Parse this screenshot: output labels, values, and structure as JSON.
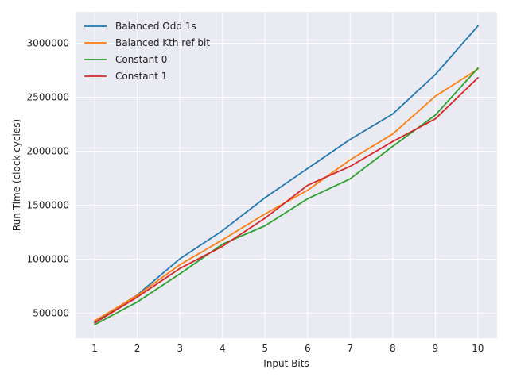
{
  "chart_data": {
    "type": "line",
    "title": "",
    "xlabel": "Input Bits",
    "ylabel": "Run Time (clock cycles)",
    "x": [
      1,
      2,
      3,
      4,
      5,
      6,
      7,
      8,
      9,
      10
    ],
    "xticks": [
      "1",
      "2",
      "3",
      "4",
      "5",
      "6",
      "7",
      "8",
      "9",
      "10"
    ],
    "yticks": [
      500000,
      1000000,
      1500000,
      2000000,
      2500000,
      3000000
    ],
    "ytick_labels": [
      "500000",
      "1000000",
      "1500000",
      "2000000",
      "2500000",
      "3000000"
    ],
    "xlim": [
      0.55,
      10.45
    ],
    "ylim": [
      270000,
      3290000
    ],
    "grid": true,
    "legend_position": "top-left",
    "series": [
      {
        "name": "Balanced Odd 1s",
        "color": "#1f77b4",
        "values": [
          420000,
          670000,
          1005000,
          1265000,
          1570000,
          1840000,
          2110000,
          2345000,
          2710000,
          3160000
        ]
      },
      {
        "name": "Balanced Kth ref bit",
        "color": "#ff7f0e",
        "values": [
          430000,
          665000,
          950000,
          1180000,
          1420000,
          1640000,
          1920000,
          2160000,
          2510000,
          2760000
        ]
      },
      {
        "name": "Constant 0",
        "color": "#2ca02c",
        "values": [
          395000,
          605000,
          865000,
          1140000,
          1310000,
          1560000,
          1745000,
          2045000,
          2335000,
          2770000
        ]
      },
      {
        "name": "Constant 1",
        "color": "#d62728",
        "values": [
          410000,
          650000,
          915000,
          1120000,
          1380000,
          1685000,
          1860000,
          2090000,
          2300000,
          2680000
        ]
      }
    ]
  }
}
